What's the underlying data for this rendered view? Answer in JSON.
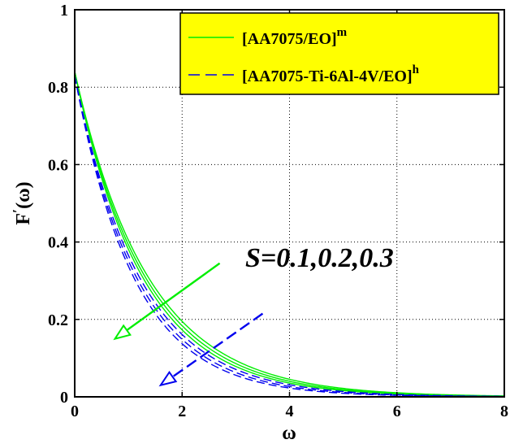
{
  "chart_data": {
    "type": "line",
    "xlabel": "ω",
    "ylabel": "F",
    "ylabel_prime": "′",
    "ylabel_arg": "(ω)",
    "xlim": [
      0,
      8
    ],
    "ylim": [
      0,
      1
    ],
    "xticks": [
      0,
      2,
      4,
      6,
      8
    ],
    "xtick_labels": [
      "0",
      "2",
      "4",
      "6",
      "8"
    ],
    "yticks": [
      0,
      0.2,
      0.4,
      0.6,
      0.8,
      1
    ],
    "ytick_labels": [
      "0",
      "0.2",
      "0.4",
      "0.6",
      "0.8",
      "1"
    ],
    "grid": true,
    "legend_position": "top-right",
    "legend_background": "#ffff00",
    "series": [
      {
        "name": "[AA7075/EO]",
        "name_superscript": "m",
        "color": "#00ee00",
        "style": "solid",
        "curves": [
          {
            "S": 0.1,
            "F0": 0.84,
            "decay": 0.73
          },
          {
            "S": 0.2,
            "F0": 0.84,
            "decay": 0.76
          },
          {
            "S": 0.3,
            "F0": 0.84,
            "decay": 0.79
          }
        ]
      },
      {
        "name": "[AA7075-Ti-6Al-4V/EO]",
        "name_superscript": "h",
        "color": "#0000ee",
        "style": "dashed",
        "curves": [
          {
            "S": 0.1,
            "F0": 0.83,
            "decay": 0.82
          },
          {
            "S": 0.2,
            "F0": 0.83,
            "decay": 0.86
          },
          {
            "S": 0.3,
            "F0": 0.83,
            "decay": 0.9
          }
        ]
      }
    ],
    "annotations": [
      {
        "text": "S=0.1,0.2,0.3"
      }
    ],
    "arrows": [
      {
        "color": "#00ee00",
        "style": "solid",
        "from": [
          2.7,
          0.345
        ],
        "to": [
          0.75,
          0.15
        ]
      },
      {
        "color": "#0000ee",
        "style": "dashed",
        "from": [
          3.5,
          0.215
        ],
        "to": [
          1.6,
          0.03
        ]
      }
    ]
  }
}
